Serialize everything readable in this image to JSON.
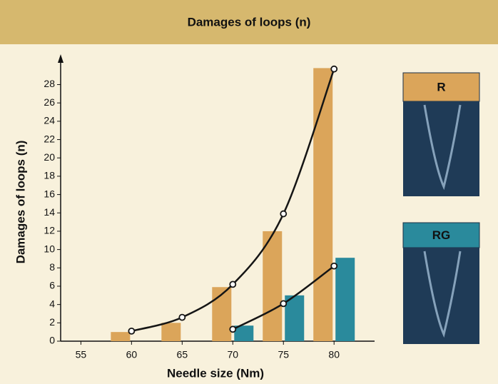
{
  "chart_data": {
    "type": "bar",
    "title": "Damages of loops (n)",
    "x_label": "Needle size (Nm)",
    "y_label": "Damages of loops (n)",
    "x": [
      60,
      65,
      70,
      75,
      80
    ],
    "series": [
      {
        "name": "R",
        "color": "#dba55a",
        "values": [
          1,
          2,
          5.9,
          12,
          29.8
        ],
        "curve": [
          1.1,
          2.6,
          6.2,
          13.9,
          29.7
        ]
      },
      {
        "name": "RG",
        "color": "#2a8a9c",
        "values": [
          null,
          null,
          1.7,
          5,
          9.1
        ],
        "curve": [
          null,
          null,
          1.3,
          4.1,
          8.2
        ]
      }
    ],
    "curve_color": "#151515",
    "xlim": [
      53,
      84
    ],
    "xticks": [
      55,
      60,
      65,
      70,
      75,
      80
    ],
    "ylim": [
      0,
      31
    ],
    "yticks": [
      0,
      2,
      4,
      6,
      8,
      10,
      12,
      14,
      16,
      18,
      20,
      22,
      24,
      26,
      28
    ]
  }
}
